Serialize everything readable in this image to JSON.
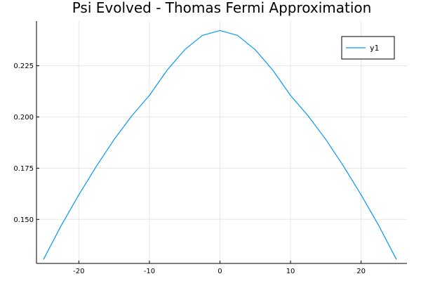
{
  "chart_data": {
    "type": "line",
    "title": "Psi Evolved - Thomas Fermi Approximation",
    "xlabel": "",
    "ylabel": "",
    "xlim": [
      -26,
      26.5
    ],
    "ylim": [
      0.1285,
      0.2468
    ],
    "x_ticks": [
      -20,
      -10,
      0,
      10,
      20
    ],
    "x_tick_labels": [
      "-20",
      "-10",
      "0",
      "10",
      "20"
    ],
    "y_ticks": [
      0.15,
      0.175,
      0.2,
      0.225
    ],
    "y_tick_labels": [
      "0.150",
      "0.175",
      "0.200",
      "0.225"
    ],
    "grid": true,
    "legend_position": "top-right",
    "series": [
      {
        "name": "y1",
        "color": "#009AF9",
        "x": [
          -25,
          -22.5,
          -20,
          -17.5,
          -15,
          -12.5,
          -10,
          -7.5,
          -5,
          -2.5,
          0,
          2.5,
          5,
          7.5,
          10,
          12.5,
          15,
          17.5,
          20,
          22.5,
          25
        ],
        "y": [
          0.1305,
          0.147,
          0.162,
          0.176,
          0.189,
          0.2005,
          0.2105,
          0.2228,
          0.2328,
          0.2398,
          0.2422,
          0.2398,
          0.2328,
          0.2228,
          0.2105,
          0.2005,
          0.189,
          0.176,
          0.162,
          0.147,
          0.1305
        ]
      }
    ]
  }
}
